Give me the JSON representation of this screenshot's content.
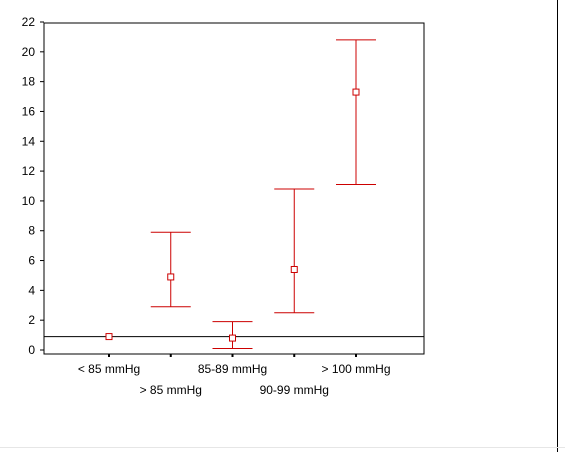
{
  "chart_data": {
    "type": "errorbar",
    "title": "",
    "xlabel": "",
    "ylabel": "",
    "ylim": [
      0,
      22
    ],
    "yticks": [
      0,
      2,
      4,
      6,
      8,
      10,
      12,
      14,
      16,
      18,
      20,
      22
    ],
    "categories": [
      "< 85 mmHg",
      "> 85 mmHg",
      "85-89 mmHg",
      "90-99 mmHg",
      "> 100 mmHg"
    ],
    "series": [
      {
        "means": [
          0.9,
          4.9,
          0.8,
          5.4,
          17.3
        ],
        "lower": [
          null,
          2.9,
          0.1,
          2.5,
          11.1
        ],
        "upper": [
          null,
          7.9,
          1.9,
          10.8,
          20.8
        ]
      }
    ],
    "reference_line": 0.9,
    "color": "#cc0000",
    "grid": false,
    "legend": "none"
  }
}
